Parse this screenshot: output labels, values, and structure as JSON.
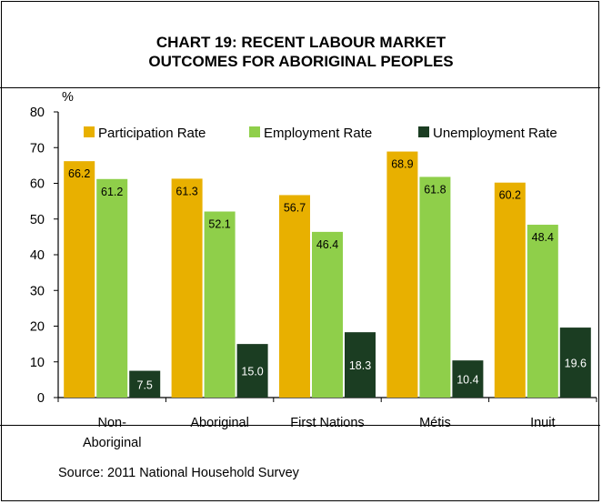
{
  "chart_data": {
    "type": "bar",
    "title_lines": [
      "CHART 19: RECENT LABOUR MARKET",
      "OUTCOMES FOR ABORIGINAL PEOPLES"
    ],
    "ylabel": "%",
    "ylim": [
      0,
      80
    ],
    "yticks": [
      "0",
      "10",
      "20",
      "30",
      "40",
      "50",
      "60",
      "70",
      "80"
    ],
    "categories": [
      [
        "Non-",
        "Aboriginal"
      ],
      [
        "Aboriginal"
      ],
      [
        "First Nations"
      ],
      [
        "Métis"
      ],
      [
        "Inuit"
      ]
    ],
    "series": [
      {
        "name": "Participation Rate",
        "color": "#e8b000",
        "values": [
          66.2,
          61.3,
          56.7,
          68.9,
          60.2
        ],
        "labels": [
          "66.2",
          "61.3",
          "56.7",
          "68.9",
          "60.2"
        ]
      },
      {
        "name": "Employment Rate",
        "color": "#8fcf4a",
        "values": [
          61.2,
          52.1,
          46.4,
          61.8,
          48.4
        ],
        "labels": [
          "61.2",
          "52.1",
          "46.4",
          "61.8",
          "48.4"
        ]
      },
      {
        "name": "Unemployment Rate",
        "color": "#1b3d22",
        "values": [
          7.5,
          15.0,
          18.3,
          10.4,
          19.6
        ],
        "labels": [
          "7.5",
          "15.0",
          "18.3",
          "10.4",
          "19.6"
        ]
      }
    ],
    "legend_position": "top",
    "grid": false
  },
  "source": "Source: 2011 National Household Survey"
}
